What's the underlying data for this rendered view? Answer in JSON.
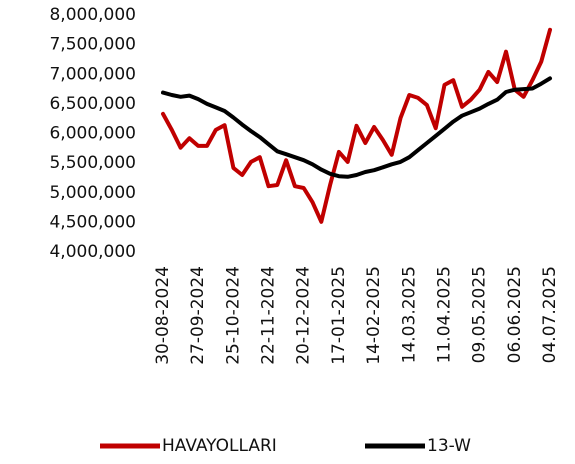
{
  "chart_data": {
    "type": "line",
    "categories": [
      "30-08-2024",
      null,
      null,
      null,
      "27-09-2024",
      null,
      null,
      null,
      "25-10-2024",
      null,
      null,
      null,
      "22-11-2024",
      null,
      null,
      null,
      "20-12-2024",
      null,
      null,
      null,
      "17-01-2025",
      null,
      null,
      null,
      "14-02-2025",
      null,
      null,
      null,
      "14.03.2025",
      null,
      null,
      null,
      "11.04.2025",
      null,
      null,
      null,
      "09.05.2025",
      null,
      null,
      null,
      "06.06.2025",
      null,
      null,
      null,
      "04.07.2025"
    ],
    "series": [
      {
        "name": "HAVAYOLLARI",
        "color": "#c00000",
        "values": [
          6330000,
          6060000,
          5760000,
          5920000,
          5790000,
          5790000,
          6060000,
          6140000,
          5420000,
          5300000,
          5520000,
          5600000,
          5110000,
          5130000,
          5550000,
          5110000,
          5080000,
          4840000,
          4510000,
          5130000,
          5690000,
          5520000,
          6130000,
          5840000,
          6110000,
          5890000,
          5640000,
          6260000,
          6650000,
          6600000,
          6480000,
          6090000,
          6820000,
          6900000,
          6450000,
          6570000,
          6740000,
          7040000,
          6870000,
          7380000,
          6740000,
          6620000,
          6900000,
          7210000,
          7750000
        ]
      },
      {
        "name": "13-W",
        "color": "#000000",
        "values": [
          6690000,
          6650000,
          6620000,
          6640000,
          6580000,
          6500000,
          6440000,
          6380000,
          6270000,
          6150000,
          6040000,
          5940000,
          5820000,
          5700000,
          5650000,
          5600000,
          5550000,
          5480000,
          5390000,
          5320000,
          5280000,
          5270000,
          5300000,
          5350000,
          5380000,
          5430000,
          5480000,
          5520000,
          5600000,
          5720000,
          5840000,
          5960000,
          6080000,
          6200000,
          6300000,
          6360000,
          6420000,
          6500000,
          6570000,
          6700000,
          6740000,
          6750000,
          6760000,
          6840000,
          6930000
        ]
      }
    ],
    "ylim": [
      4000000,
      8000000
    ],
    "yticks": [
      {
        "value": 4000000,
        "label": "4,000,000"
      },
      {
        "value": 4500000,
        "label": "4,500,000"
      },
      {
        "value": 5000000,
        "label": "5,000,000"
      },
      {
        "value": 5500000,
        "label": "5,500,000"
      },
      {
        "value": 6000000,
        "label": "6,000,000"
      },
      {
        "value": 6500000,
        "label": "6,500,000"
      },
      {
        "value": 7000000,
        "label": "7,000,000"
      },
      {
        "value": 7500000,
        "label": "7,500,000"
      },
      {
        "value": 8000000,
        "label": "8,000,000"
      }
    ],
    "grid": false,
    "legend": "bottom"
  }
}
